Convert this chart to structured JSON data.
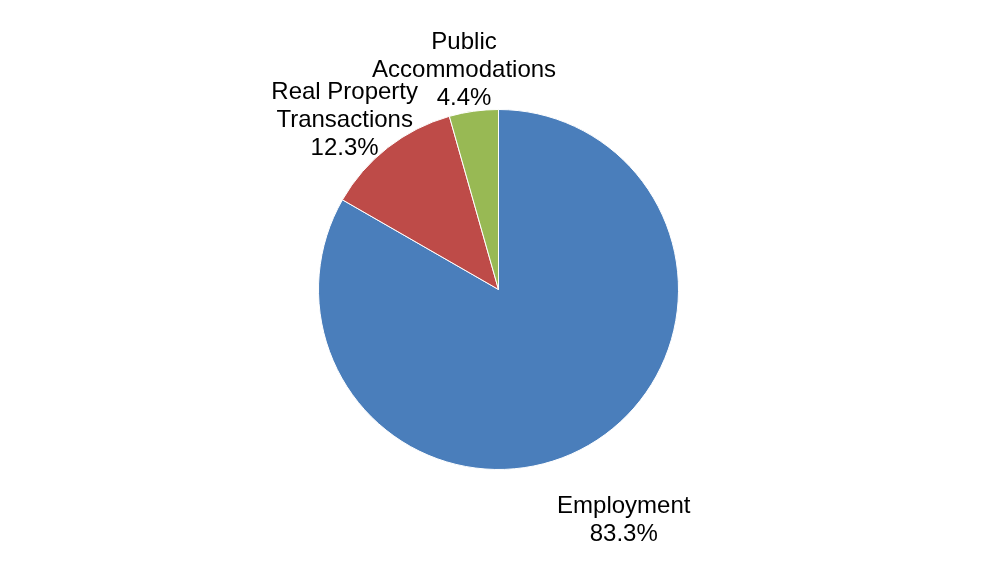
{
  "chart_data": {
    "type": "pie",
    "categories": [
      "Employment",
      "Real Property Transactions",
      "Public Accommodations"
    ],
    "values": [
      83.3,
      12.3,
      4.4
    ],
    "value_labels": [
      "83.3%",
      "12.3%",
      "4.4%"
    ],
    "colors": [
      "#4a7ebb",
      "#be4b48",
      "#98b954"
    ],
    "legend": false
  }
}
